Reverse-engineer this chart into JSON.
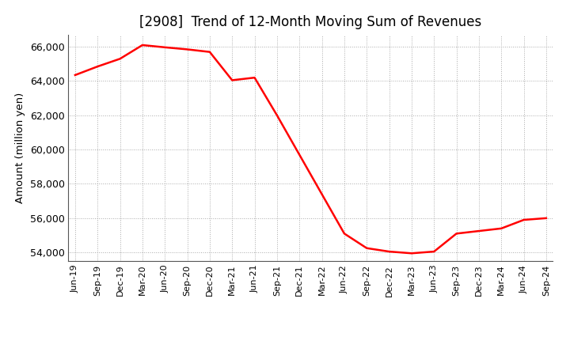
{
  "title": "[2908]  Trend of 12-Month Moving Sum of Revenues",
  "ylabel": "Amount (million yen)",
  "line_color": "#FF0000",
  "background_color": "#FFFFFF",
  "grid_color": "#AAAAAA",
  "ylim": [
    53500,
    66700
  ],
  "yticks": [
    54000,
    56000,
    58000,
    60000,
    62000,
    64000,
    66000
  ],
  "x_labels": [
    "Jun-19",
    "Sep-19",
    "Dec-19",
    "Mar-20",
    "Jun-20",
    "Sep-20",
    "Dec-20",
    "Mar-21",
    "Jun-21",
    "Sep-21",
    "Dec-21",
    "Mar-22",
    "Jun-22",
    "Sep-22",
    "Dec-22",
    "Mar-23",
    "Jun-23",
    "Sep-23",
    "Dec-23",
    "Mar-24",
    "Jun-24",
    "Sep-24"
  ],
  "y_values": [
    64350,
    64850,
    65300,
    66100,
    65970,
    65850,
    65700,
    64050,
    64200,
    62000,
    59700,
    57400,
    55100,
    54250,
    54050,
    53950,
    54050,
    55100,
    55250,
    55400,
    55900,
    56000
  ]
}
